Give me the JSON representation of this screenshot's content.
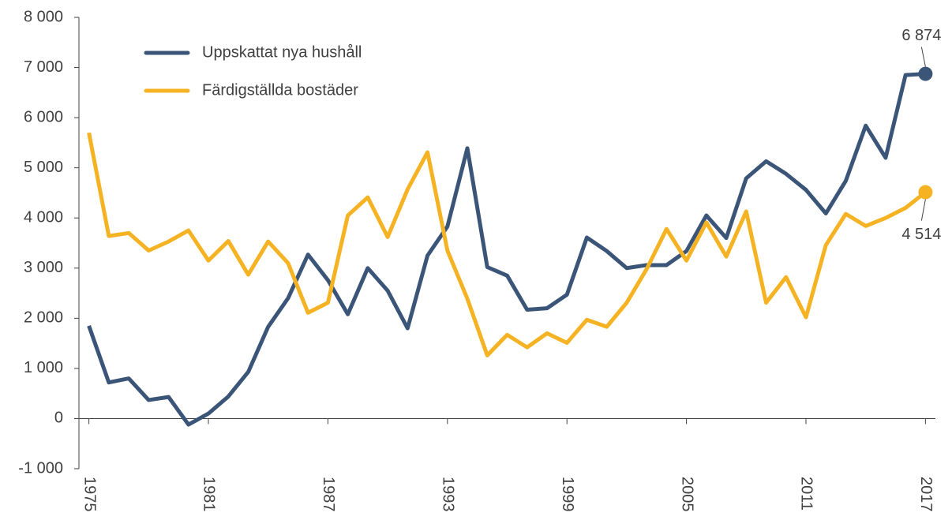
{
  "chart_data": {
    "type": "line",
    "x": [
      1975,
      1976,
      1977,
      1978,
      1979,
      1980,
      1981,
      1982,
      1983,
      1984,
      1985,
      1986,
      1987,
      1988,
      1989,
      1990,
      1991,
      1992,
      1993,
      1994,
      1995,
      1996,
      1997,
      1998,
      1999,
      2000,
      2001,
      2002,
      2003,
      2004,
      2005,
      2006,
      2007,
      2008,
      2009,
      2010,
      2011,
      2012,
      2013,
      2014,
      2015,
      2016,
      2017
    ],
    "xlim": [
      1974.5,
      2017.5
    ],
    "xticks": [
      1975,
      1981,
      1987,
      1993,
      1999,
      2005,
      2011,
      2017
    ],
    "ylim": [
      -1000,
      8000
    ],
    "yticks": [
      {
        "value": -1000,
        "label": "-1 000"
      },
      0,
      {
        "value": 1000,
        "label": "1 000"
      },
      {
        "value": 2000,
        "label": "2 000"
      },
      {
        "value": 3000,
        "label": "3 000"
      },
      {
        "value": 4000,
        "label": "4 000"
      },
      {
        "value": 5000,
        "label": "5 000"
      },
      {
        "value": 6000,
        "label": "6 000"
      },
      {
        "value": 7000,
        "label": "7 000"
      },
      {
        "value": 8000,
        "label": "8 000"
      }
    ],
    "grid": false,
    "legend": "top-left",
    "series": [
      {
        "name": "Uppskattat nya hushåll",
        "color": "#3b5578",
        "values": [
          1850,
          720,
          800,
          370,
          430,
          -120,
          100,
          440,
          930,
          1830,
          2400,
          3270,
          2760,
          2080,
          3000,
          2550,
          1800,
          3250,
          3830,
          5390,
          3020,
          2850,
          2170,
          2200,
          2470,
          3610,
          3340,
          3000,
          3060,
          3060,
          3340,
          4050,
          3600,
          4790,
          5130,
          4880,
          4560,
          4090,
          4740,
          5840,
          5200,
          6850,
          6874
        ],
        "value_labels": [
          null,
          null,
          null,
          null,
          null,
          null,
          null,
          null,
          null,
          null,
          null,
          null,
          null,
          null,
          null,
          null,
          null,
          null,
          null,
          null,
          null,
          null,
          null,
          null,
          null,
          null,
          null,
          null,
          null,
          null,
          null,
          null,
          null,
          null,
          null,
          null,
          null,
          null,
          null,
          null,
          null,
          null,
          "6 874"
        ]
      },
      {
        "name": "Färdigställda bostäder",
        "color": "#f5b323",
        "values": [
          5700,
          3640,
          3700,
          3350,
          3530,
          3750,
          3150,
          3540,
          2870,
          3530,
          3100,
          2110,
          2310,
          4050,
          4410,
          3620,
          4570,
          5310,
          3350,
          2390,
          1260,
          1670,
          1420,
          1700,
          1510,
          1970,
          1830,
          2310,
          2980,
          3780,
          3150,
          3910,
          3230,
          4130,
          2310,
          2820,
          2020,
          3460,
          4080,
          3840,
          4000,
          4200,
          4514
        ],
        "value_labels": [
          null,
          null,
          null,
          null,
          null,
          null,
          null,
          null,
          null,
          null,
          null,
          null,
          null,
          null,
          null,
          null,
          null,
          null,
          null,
          null,
          null,
          null,
          null,
          null,
          null,
          null,
          null,
          null,
          null,
          null,
          null,
          null,
          null,
          null,
          null,
          null,
          null,
          null,
          null,
          null,
          null,
          null,
          "4 514"
        ]
      }
    ]
  }
}
